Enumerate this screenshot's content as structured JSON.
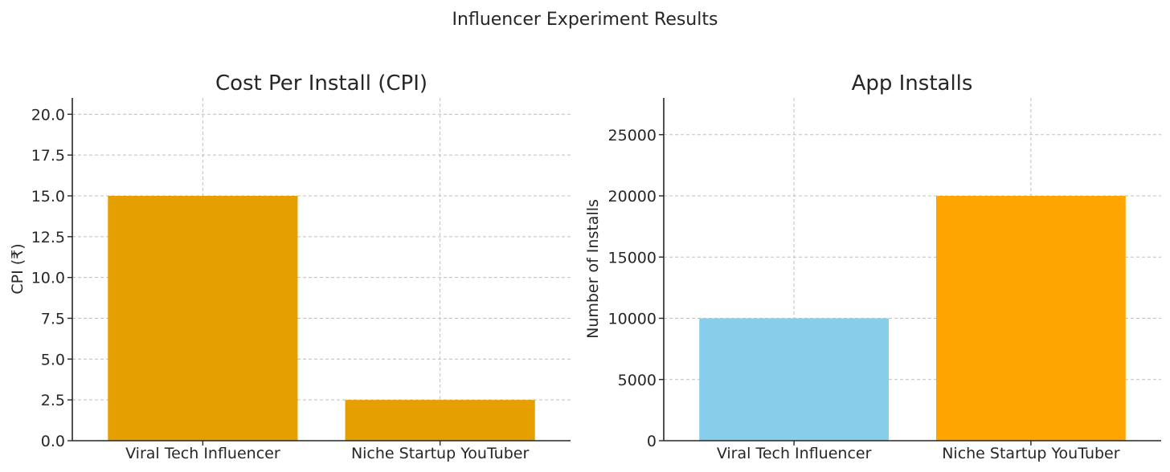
{
  "figure": {
    "suptitle": "Influencer Experiment Results"
  },
  "chart_data": [
    {
      "type": "bar",
      "title": "Cost Per Install (CPI)",
      "xlabel": "",
      "ylabel": "CPI (₹)",
      "categories": [
        "Viral Tech Influencer",
        "Niche Startup YouTuber"
      ],
      "values": [
        15.0,
        2.5
      ],
      "colors": [
        "#e69f00",
        "#e69f00"
      ],
      "ylim": [
        0,
        21
      ],
      "yticks": [
        0,
        2.5,
        5,
        7.5,
        10,
        12.5,
        15,
        17.5,
        20
      ],
      "ytick_labels": [
        "0.0",
        "2.5",
        "5.0",
        "7.5",
        "10.0",
        "12.5",
        "15.0",
        "17.5",
        "20.0"
      ],
      "grid": true
    },
    {
      "type": "bar",
      "title": "App Installs",
      "xlabel": "",
      "ylabel": "Number of Installs",
      "categories": [
        "Viral Tech Influencer",
        "Niche Startup YouTuber"
      ],
      "values": [
        10000,
        20000
      ],
      "colors": [
        "#87ceeb",
        "#ffa500"
      ],
      "ylim": [
        0,
        28000
      ],
      "yticks": [
        0,
        5000,
        10000,
        15000,
        20000,
        25000
      ],
      "ytick_labels": [
        "0",
        "5000",
        "10000",
        "15000",
        "20000",
        "25000"
      ],
      "grid": true
    }
  ]
}
